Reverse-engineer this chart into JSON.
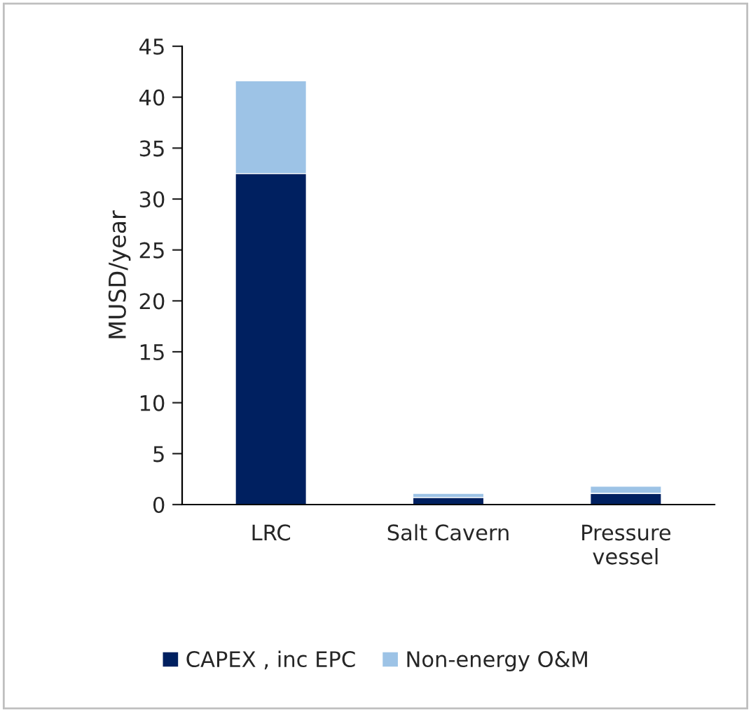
{
  "chart_data": {
    "type": "bar",
    "stacked": true,
    "ylabel": "MUSD/year",
    "categories": [
      "LRC",
      "Salt Cavern",
      "Pressure\nvessel"
    ],
    "series": [
      {
        "name": "CAPEX , inc EPC",
        "color": "#002060",
        "values": [
          32.5,
          0.7,
          1.1
        ]
      },
      {
        "name": "Non-energy O&M",
        "color": "#9dc3e6",
        "values": [
          9.1,
          0.4,
          0.7
        ]
      }
    ],
    "ylim": [
      0,
      45
    ],
    "yticks": [
      0,
      5,
      10,
      15,
      20,
      25,
      30,
      35,
      40,
      45
    ],
    "grid": false,
    "legend": "bottom"
  }
}
